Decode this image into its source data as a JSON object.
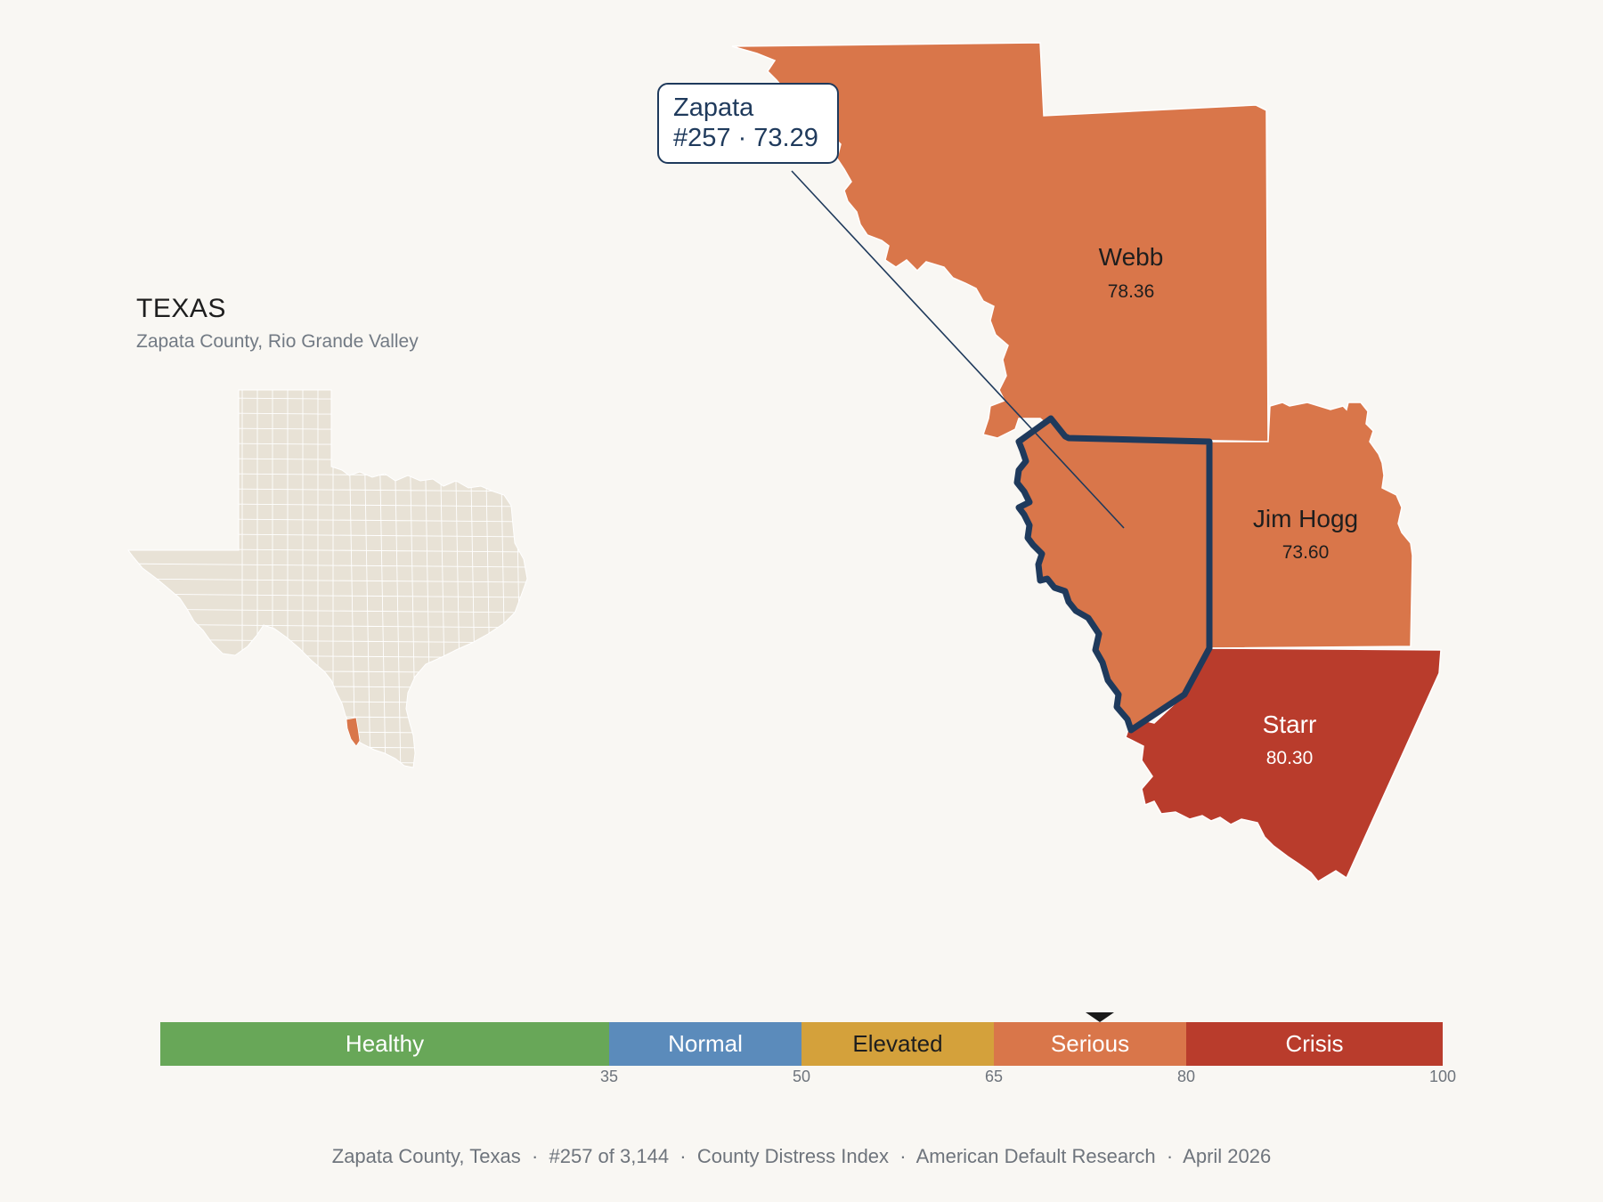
{
  "header": {
    "state": "TEXAS",
    "subtitle": "Zapata County, Rio Grande Valley"
  },
  "map": {
    "counties": [
      {
        "name": "Webb",
        "score": "78.36",
        "color": "#d9764a",
        "label_color": "#1e1e1e"
      },
      {
        "name": "Jim Hogg",
        "score": "73.60",
        "color": "#d9764a",
        "label_color": "#1e1e1e"
      },
      {
        "name": "Starr",
        "score": "80.30",
        "color": "#b93c2c",
        "label_color": "#ffffff"
      },
      {
        "name": "Zapata",
        "score": "73.29",
        "color": "#d9764a",
        "selected": true
      }
    ],
    "highlight_color": "#1f3a5c",
    "callout": {
      "county": "Zapata",
      "line2": "#257 · 73.29"
    }
  },
  "inset": {
    "base_color": "#e8e2d6",
    "highlight_color": "#d9764a",
    "border_color": "#ffffff"
  },
  "legend": {
    "bands": [
      {
        "label": "Healthy",
        "min": 0,
        "max": 35,
        "color": "#68a758",
        "text_color": "#ffffff"
      },
      {
        "label": "Normal",
        "min": 35,
        "max": 50,
        "color": "#5b8bbb",
        "text_color": "#ffffff"
      },
      {
        "label": "Elevated",
        "min": 50,
        "max": 65,
        "color": "#d4a13b",
        "text_color": "#1e1e1e"
      },
      {
        "label": "Serious",
        "min": 65,
        "max": 80,
        "color": "#d9764a",
        "text_color": "#ffffff"
      },
      {
        "label": "Crisis",
        "min": 80,
        "max": 100,
        "color": "#b93c2c",
        "text_color": "#ffffff"
      }
    ],
    "ticks": [
      "35",
      "50",
      "65",
      "80",
      "100"
    ],
    "marker_value": 73.29
  },
  "footer": {
    "text": "Zapata County, Texas  ·  #257 of 3,144  ·  County Distress Index  ·  American Default Research  ·  April 2026"
  }
}
